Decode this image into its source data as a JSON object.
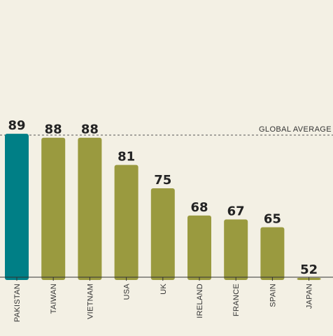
{
  "chart_data": {
    "type": "bar",
    "categories": [
      "PAKISTAN",
      "TAIWAN",
      "VIETNAM",
      "USA",
      "UK",
      "IRELAND",
      "FRANCE",
      "SPAIN",
      "JAPAN"
    ],
    "values": [
      89,
      88,
      88,
      81,
      75,
      68,
      67,
      65,
      52
    ],
    "value_labels": [
      "89",
      "88",
      "88",
      "81",
      "75",
      "68",
      "67",
      "65",
      "52"
    ],
    "reference_line": {
      "label": "GLOBAL AVERAGE"
    },
    "colors": {
      "highlight": "#007f86",
      "bar": "#9a9a3f",
      "background": "#f3f0e4",
      "axis": "#333333"
    },
    "highlight_index": 0
  }
}
